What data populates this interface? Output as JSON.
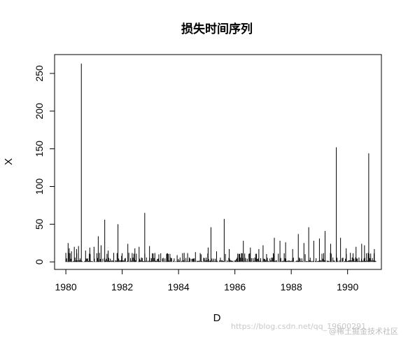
{
  "watermarks": {
    "url": "https://blog.csdn.net/qq_19600291",
    "brand": "@稀土掘金技术社区"
  },
  "chart_data": {
    "type": "line",
    "title": "损失时间序列",
    "xlabel": "D",
    "ylabel": "X",
    "xlim": [
      1979.6,
      1991.2
    ],
    "ylim": [
      -10,
      275
    ],
    "xticks": [
      1980,
      1982,
      1984,
      1986,
      1988,
      1990
    ],
    "xtick_labels": [
      "1980",
      "1982",
      "1984",
      "1986",
      "1988",
      "1990"
    ],
    "yticks": [
      0,
      50,
      100,
      150,
      200,
      250
    ],
    "ytick_labels": [
      "0",
      "50",
      "100",
      "150",
      "200",
      "250"
    ],
    "grid": false,
    "legend": "none",
    "line_color": "#000000",
    "series": [
      {
        "x": [
          1980.0,
          1980.08,
          1980.12,
          1980.2,
          1980.3,
          1980.38,
          1980.45,
          1980.55,
          1980.7,
          1980.85,
          1981.0,
          1981.15,
          1981.25,
          1981.38,
          1981.5,
          1981.7,
          1981.85,
          1981.98,
          1982.2,
          1982.45,
          1982.6,
          1982.8,
          1982.97,
          1983.3,
          1983.6,
          1983.95,
          1984.2,
          1984.6,
          1984.8,
          1985.05,
          1985.15,
          1985.35,
          1985.62,
          1985.8,
          1986.1,
          1986.3,
          1986.55,
          1986.85,
          1987.0,
          1987.4,
          1987.6,
          1987.8,
          1988.05,
          1988.25,
          1988.45,
          1988.62,
          1988.8,
          1989.0,
          1989.2,
          1989.4,
          1989.6,
          1989.75,
          1989.95,
          1990.1,
          1990.3,
          1990.5,
          1990.6,
          1990.75,
          1990.95
        ],
        "y": [
          4,
          25,
          18,
          14,
          20,
          17,
          21,
          263,
          15,
          19,
          20,
          34,
          22,
          56,
          15,
          12,
          50,
          8,
          24,
          18,
          20,
          65,
          21,
          10,
          11,
          9,
          12,
          13,
          10,
          19,
          46,
          14,
          57,
          17,
          11,
          28,
          19,
          17,
          22,
          32,
          28,
          26,
          17,
          37,
          25,
          46,
          28,
          31,
          41,
          24,
          152,
          32,
          18,
          12,
          20,
          24,
          22,
          144,
          17
        ]
      }
    ]
  }
}
